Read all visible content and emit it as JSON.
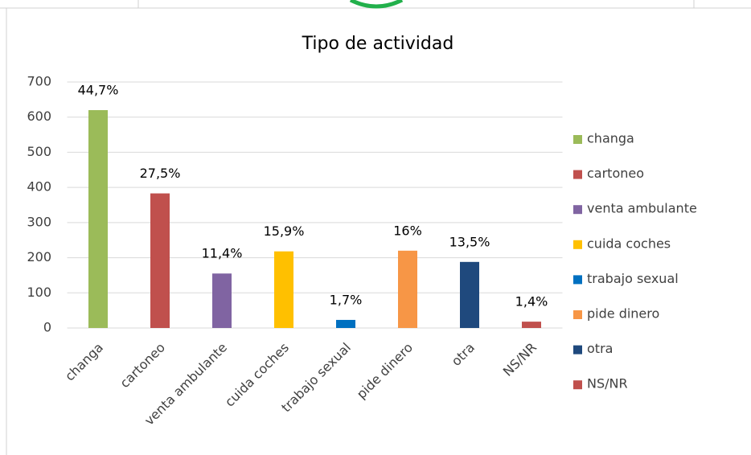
{
  "chart_data": {
    "type": "bar",
    "title": "Tipo de actividad",
    "categories": [
      "changa",
      "cartoneo",
      "venta ambulante",
      "cuida coches",
      "trabajo sexual",
      "pide dinero",
      "otra",
      "NS/NR"
    ],
    "values": [
      620,
      383,
      155,
      218,
      23,
      220,
      188,
      18
    ],
    "value_labels": [
      "44,7%",
      "27,5%",
      "11,4%",
      "15,9%",
      "1,7%",
      "16%",
      "13,5%",
      "1,4%"
    ],
    "colors": [
      "#9bbb59",
      "#c0504d",
      "#8064a2",
      "#ffc000",
      "#0070c0",
      "#f79646",
      "#1f497d",
      "#c0504d"
    ],
    "ylim": [
      0,
      700
    ],
    "yticks": [
      0,
      100,
      200,
      300,
      400,
      500,
      600,
      700
    ],
    "grid": true,
    "legend": "right"
  }
}
